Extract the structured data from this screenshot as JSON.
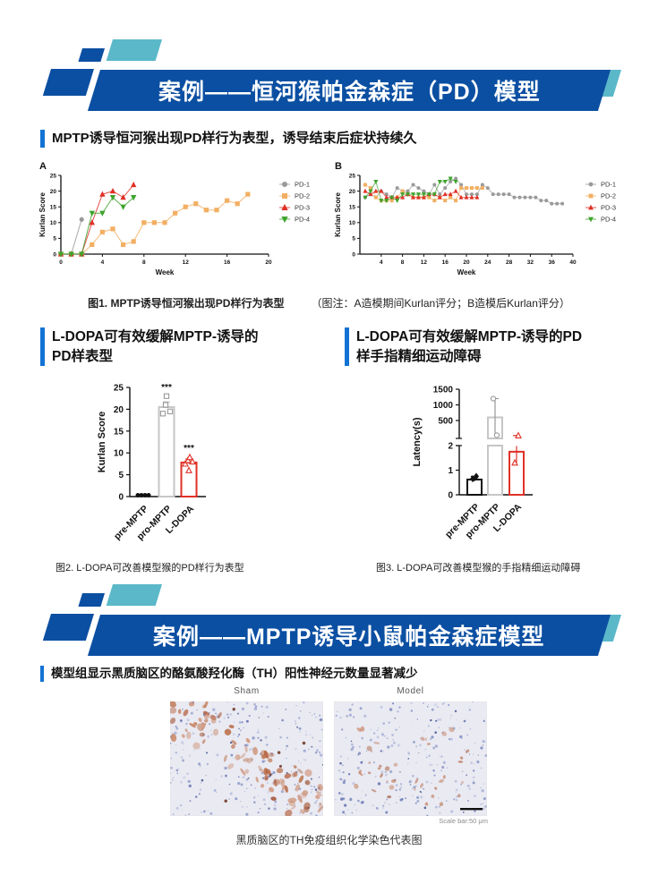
{
  "theme": {
    "banner_blue": "#0B4FA2",
    "teal_accent": "#5BB8C9",
    "accent_blue": "#1273D4"
  },
  "banner1": {
    "title": "案例——恒河猴帕金森症（PD）模型"
  },
  "section1": {
    "heading": "MPTP诱导恒河猴出现PD样行为表型，诱导结束后症状持续久"
  },
  "section2": {
    "heading_left": "L-DOPA可有效缓解MPTP-诱导的PD样表型",
    "heading_right": "L-DOPA可有效缓解MPTP-诱导的PD样手指精细运动障碍"
  },
  "banner2": {
    "title": "案例——MPTP诱导小鼠帕金森症模型"
  },
  "section3": {
    "heading": "模型组显示黑质脑区的酪氨酸羟化酶（TH）阳性神经元数量显著减少"
  },
  "figures": {
    "fig1": {
      "caption": "图1. MPTP诱导恒河猴出现PD样行为表型",
      "note": "（图注：A造模期间Kurlan评分；B造模后Kurlan评分）"
    },
    "fig2": {
      "caption": "图2. L-DOPA可改善模型猴的PD样行为表型"
    },
    "fig3": {
      "caption": "图3. L-DOPA可改善模型猴的手指精细运动障碍"
    }
  },
  "histology": {
    "background": "#EAEAF2",
    "hematoxylin_color": "#7D8CC2",
    "dab_color": "#B4613D",
    "scale_bar_text": "Scale bar:50 μm",
    "caption": "黑质脑区的TH免疫组织化学染色代表图",
    "panels": [
      {
        "label": "Sham",
        "stain_level": "high"
      },
      {
        "label": "Model",
        "stain_level": "low"
      }
    ]
  },
  "chart_data": [
    {
      "id": "panelA",
      "type": "line",
      "panel_label": "A",
      "xlabel": "Week",
      "ylabel": "Kurlan Score",
      "xlim": [
        0,
        20
      ],
      "xticks": [
        0,
        4,
        8,
        12,
        16,
        20
      ],
      "ylim": [
        0,
        25
      ],
      "yticks": [
        0,
        5,
        10,
        15,
        20,
        25
      ],
      "legend_position": "right",
      "series": [
        {
          "name": "PD-1",
          "color": "#999999",
          "marker": "circle",
          "x": [
            0,
            1,
            2
          ],
          "y": [
            0,
            0,
            11
          ]
        },
        {
          "name": "PD-2",
          "color": "#F2AF63",
          "marker": "square",
          "x": [
            0,
            1,
            2,
            3,
            4,
            5,
            6,
            7,
            8,
            9,
            10,
            11,
            12,
            13,
            14,
            15,
            16,
            17,
            18
          ],
          "y": [
            0,
            0,
            0,
            3,
            7,
            8,
            3,
            4,
            10,
            10,
            10,
            13,
            15,
            16,
            14,
            14,
            17,
            16,
            19
          ]
        },
        {
          "name": "PD-3",
          "color": "#E03127",
          "marker": "triangle",
          "x": [
            0,
            1,
            2,
            3,
            4,
            5,
            6,
            7
          ],
          "y": [
            0,
            0,
            0,
            10,
            19,
            20,
            18,
            22
          ]
        },
        {
          "name": "PD-4",
          "color": "#3FA32D",
          "marker": "triangle-down",
          "x": [
            0,
            1,
            2,
            3,
            4,
            5,
            6,
            7
          ],
          "y": [
            0,
            0,
            0,
            13,
            13,
            18,
            15,
            18
          ]
        }
      ]
    },
    {
      "id": "panelB",
      "type": "line",
      "panel_label": "B",
      "xlabel": "Week",
      "ylabel": "Kurlan Score",
      "xlim": [
        0,
        40
      ],
      "xticks": [
        4,
        8,
        12,
        16,
        20,
        24,
        28,
        32,
        36,
        40
      ],
      "ylim": [
        0,
        25
      ],
      "yticks": [
        0,
        5,
        10,
        15,
        20,
        25
      ],
      "legend_position": "right",
      "series": [
        {
          "name": "PD-1",
          "color": "#999999",
          "marker": "circle",
          "x": [
            1,
            2,
            3,
            4,
            5,
            6,
            7,
            8,
            9,
            10,
            11,
            12,
            13,
            14,
            15,
            16,
            17,
            18,
            19,
            20,
            21,
            22,
            23,
            24,
            25,
            26,
            27,
            28,
            29,
            30,
            31,
            32,
            33,
            34,
            35,
            36,
            37,
            38
          ],
          "y": [
            18,
            19,
            18,
            20,
            19,
            18,
            21,
            20,
            20,
            22,
            21,
            20,
            19,
            22,
            19,
            21,
            23,
            24,
            22,
            19,
            19,
            19,
            22,
            21,
            19,
            19,
            19,
            19,
            18,
            18,
            18,
            18,
            18,
            17,
            17,
            16,
            16,
            16
          ]
        },
        {
          "name": "PD-2",
          "color": "#F2AF63",
          "marker": "square",
          "x": [
            1,
            2,
            3,
            4,
            5,
            6,
            7,
            8,
            9,
            10,
            11,
            12,
            13,
            14,
            15,
            16,
            17,
            18,
            19,
            20,
            21,
            22,
            23
          ],
          "y": [
            22,
            21,
            18,
            17,
            17,
            17,
            18,
            20,
            19,
            18,
            18,
            18,
            18,
            17,
            18,
            17,
            18,
            17,
            21,
            21,
            21,
            21,
            21
          ]
        },
        {
          "name": "PD-3",
          "color": "#E03127",
          "marker": "triangle",
          "x": [
            1,
            2,
            3,
            4,
            5,
            6,
            7,
            8,
            9,
            10,
            11,
            12,
            13,
            14,
            15,
            16,
            17,
            18,
            19,
            20,
            21,
            22
          ],
          "y": [
            20,
            19,
            20,
            20,
            18,
            18,
            18,
            18,
            19,
            18,
            18,
            18,
            19,
            19,
            18,
            19,
            19,
            20,
            18,
            18,
            18,
            18
          ]
        },
        {
          "name": "PD-4",
          "color": "#3FA32D",
          "marker": "triangle-down",
          "x": [
            1,
            2,
            3,
            4,
            5,
            6,
            7,
            8,
            9,
            10,
            11,
            12,
            13,
            14,
            15,
            16,
            17,
            18
          ],
          "y": [
            18,
            20,
            23,
            17,
            17,
            18,
            17,
            19,
            19,
            19,
            19,
            19,
            19,
            19,
            23,
            23,
            24,
            23
          ]
        }
      ]
    },
    {
      "id": "fig2",
      "type": "bar",
      "ylabel": "Kurlan Score",
      "ylim": [
        0,
        25
      ],
      "yticks": [
        0,
        5,
        10,
        15,
        20,
        25
      ],
      "categories": [
        "pre-MPTP",
        "pro-MPTP",
        "L-DOPA"
      ],
      "bars": [
        {
          "label": "pre-MPTP",
          "value": 0,
          "err": 0,
          "color": "#111111",
          "marker": "circle",
          "points": [
            0,
            0,
            0,
            0
          ],
          "sig": ""
        },
        {
          "label": "pro-MPTP",
          "value": 20.5,
          "err": 1.2,
          "color": "#C6C6C6",
          "marker": "square",
          "points": [
            19,
            19.5,
            21,
            23
          ],
          "sig": "***"
        },
        {
          "label": "L-DOPA",
          "value": 7.8,
          "err": 0.8,
          "color": "#E03127",
          "marker": "triangle",
          "points": [
            6,
            7.5,
            8,
            8.3,
            9
          ],
          "sig": "***"
        }
      ]
    },
    {
      "id": "fig3",
      "type": "bar-broken-axis",
      "ylabel": "Latency(s)",
      "lower_ylim": [
        0,
        2
      ],
      "lower_yticks": [
        0,
        1,
        2
      ],
      "upper_ylim": [
        0,
        1500
      ],
      "upper_yticks": [
        500,
        1000,
        1500
      ],
      "categories": [
        "pre-MPTP",
        "pro-MPTP",
        "L-DOPA"
      ],
      "bars": [
        {
          "label": "pre-MPTP",
          "value": 0.62,
          "color": "#111111",
          "marker": "diamond",
          "points": [
            0.65,
            0.75
          ],
          "err_low": 0.55,
          "err_high": 0.75
        },
        {
          "label": "pro-MPTP",
          "value": 600,
          "color": "#C6C6C6",
          "marker": "circle",
          "points": [
            1200,
            30
          ],
          "err_low": 30,
          "err_high": 1200
        },
        {
          "label": "L-DOPA",
          "value": 1.75,
          "color": "#E03127",
          "marker": "triangle",
          "points": [
            1.3,
            20
          ],
          "err_low": 1.3,
          "err_high": 20
        }
      ]
    }
  ]
}
